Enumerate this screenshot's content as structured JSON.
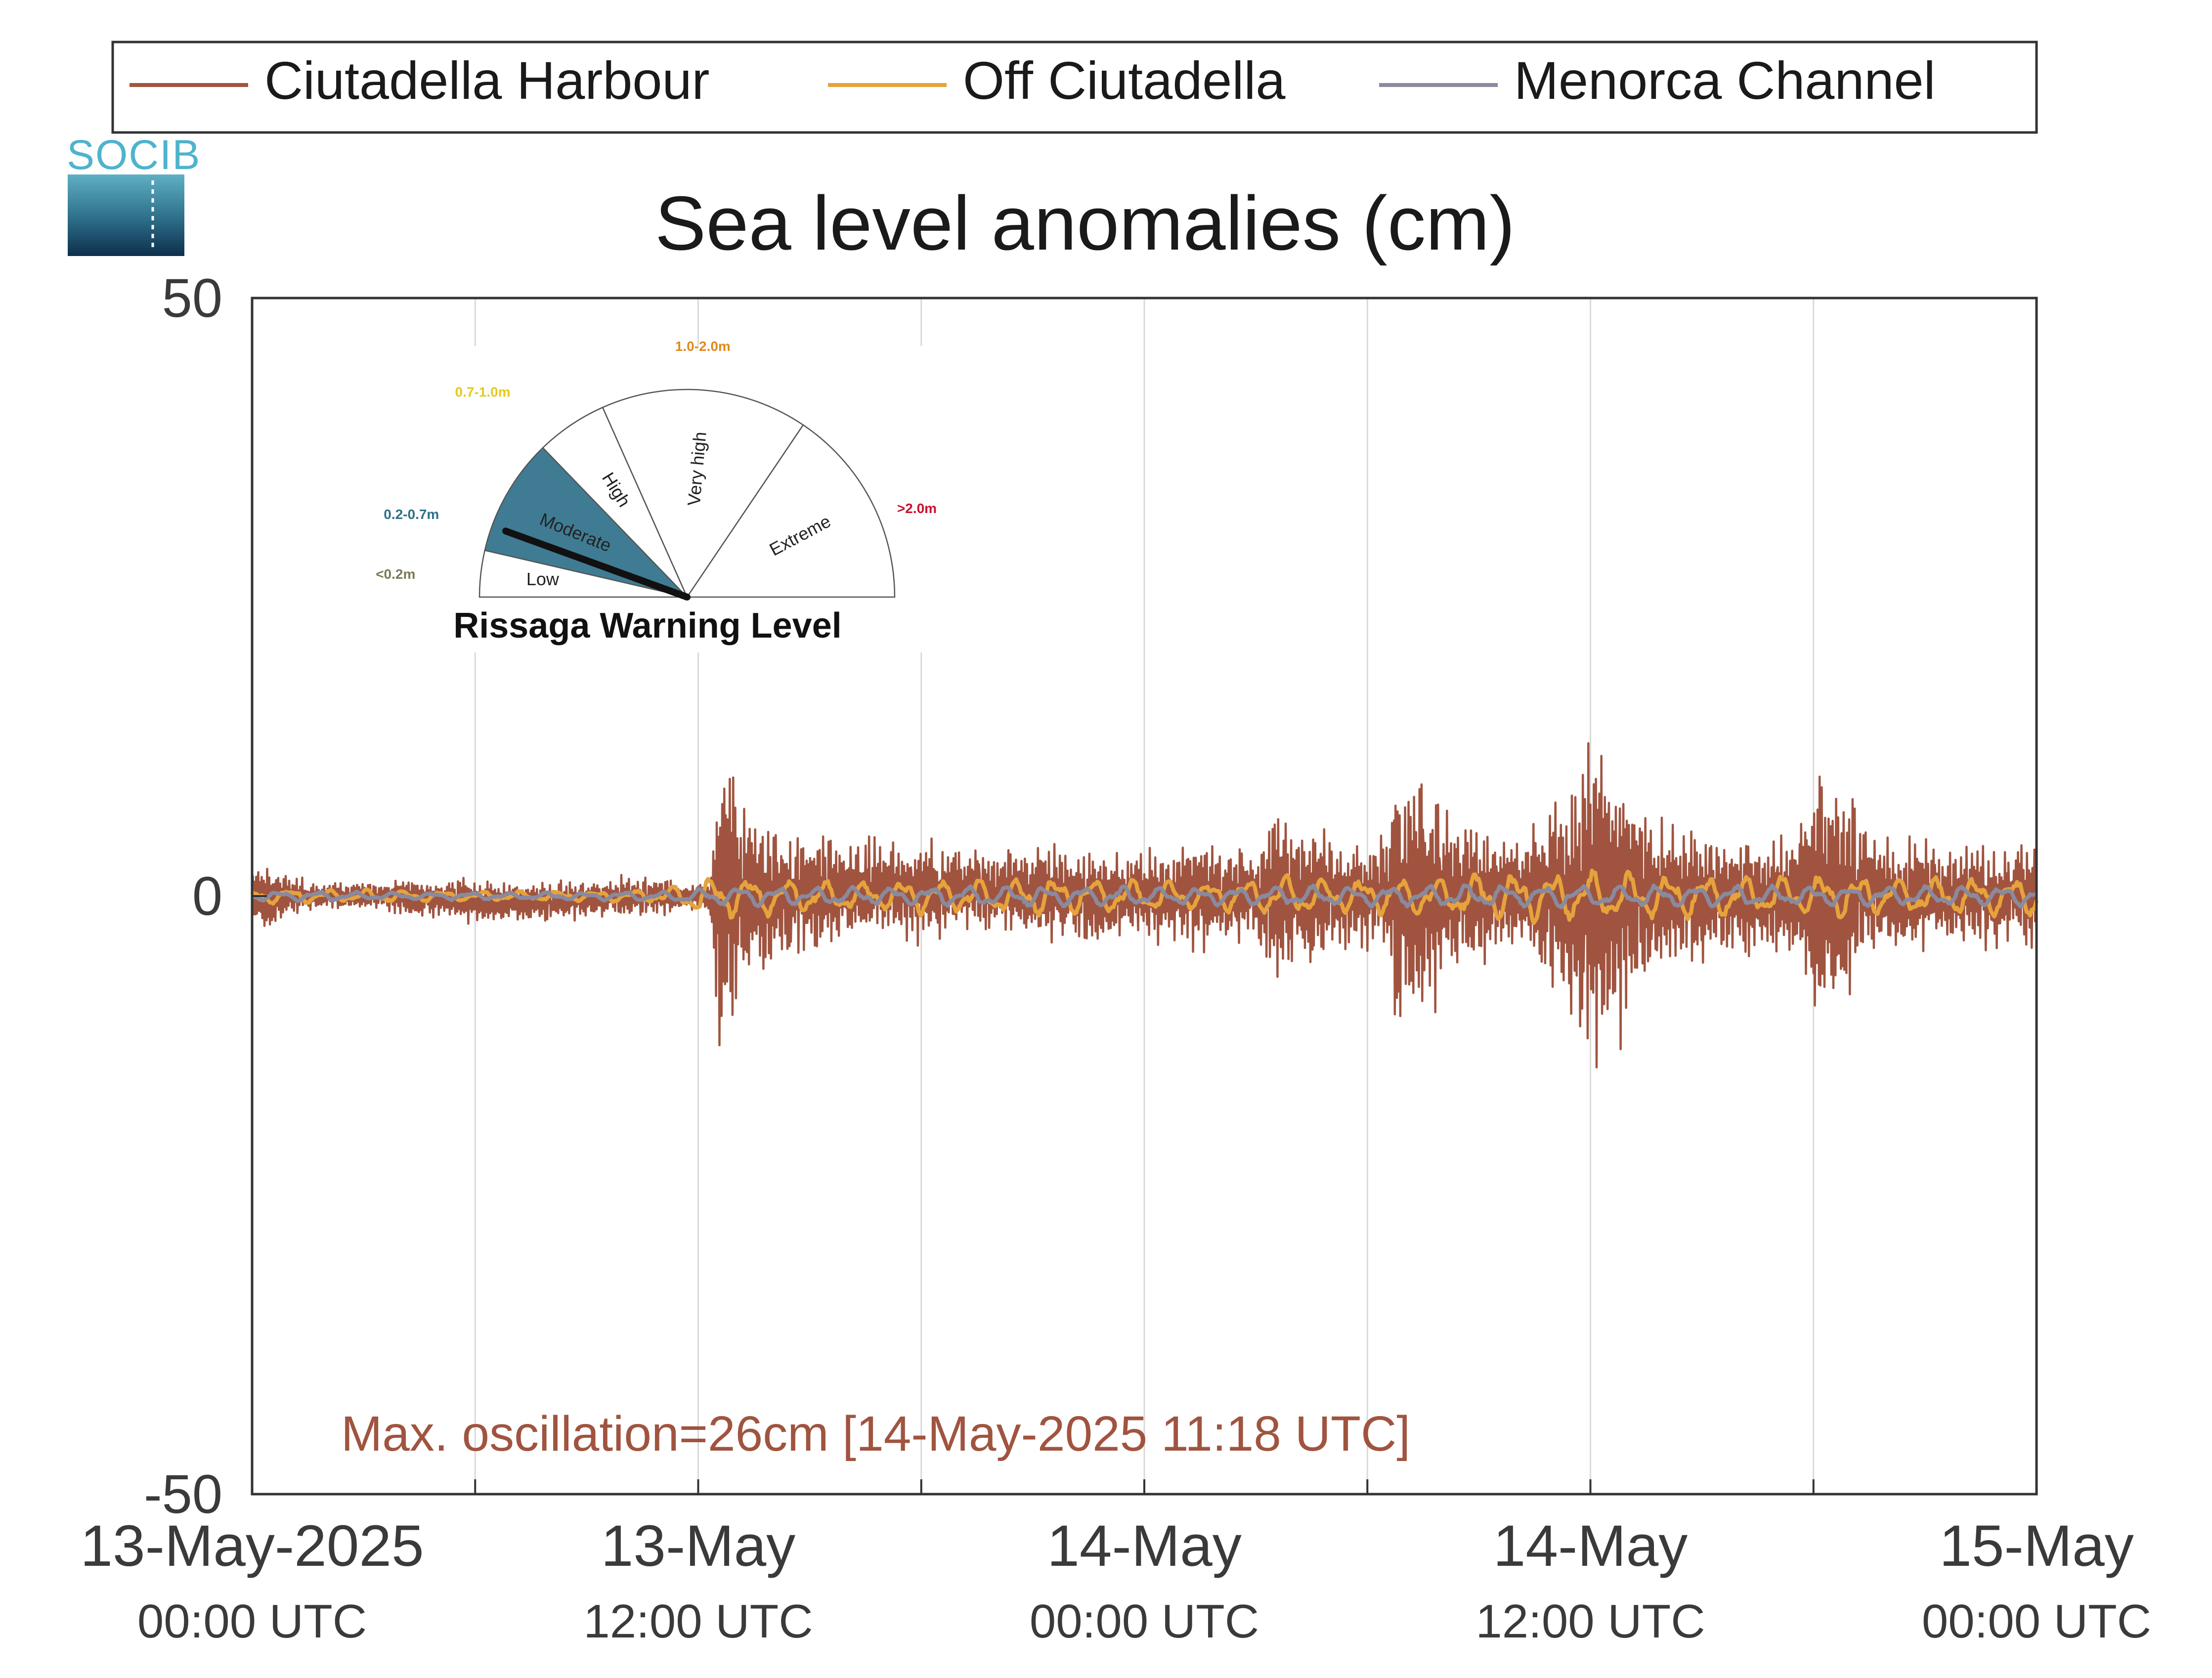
{
  "logo": {
    "text": "SOCIB"
  },
  "chart_data": {
    "type": "line",
    "title": "Sea level anomalies (cm)",
    "xlabel": "",
    "ylabel": "",
    "ylim": [
      -50,
      50
    ],
    "yticks": [
      -50,
      0,
      50
    ],
    "xlim": [
      "2025-05-13T00:00",
      "2025-05-15T00:00"
    ],
    "xticks": [
      {
        "date": "13-May-2025",
        "time": "00:00 UTC"
      },
      {
        "date": "13-May",
        "time": "12:00 UTC"
      },
      {
        "date": "14-May",
        "time": "00:00 UTC"
      },
      {
        "date": "14-May",
        "time": "12:00 UTC"
      },
      {
        "date": "15-May",
        "time": "00:00 UTC"
      }
    ],
    "grid": true,
    "legend_position": "top",
    "x_sample_minutes": 30,
    "series": [
      {
        "name": "Ciutadella Harbour",
        "color": "#a0543f",
        "amplitude_envelope_cm": [
          2,
          2.5,
          2.5,
          2,
          1.5,
          1.5,
          1,
          1,
          1,
          1,
          1,
          1,
          1,
          1,
          1.5,
          1.5,
          1.5,
          1.5,
          1.5,
          1.5,
          1.5,
          2,
          1.5,
          1.5,
          2,
          1.5,
          1.5,
          1.5,
          1.5,
          1.5,
          1.5,
          1.5,
          1.5,
          1.5,
          1.5,
          1.5,
          1.5,
          1.5,
          1.5,
          1.5,
          1.5,
          1.5,
          1,
          1,
          1,
          1.5,
          11,
          12,
          9,
          7,
          6,
          6,
          5.5,
          5,
          5,
          4.5,
          4.5,
          4.5,
          4,
          4,
          4,
          4,
          4,
          4,
          4,
          4,
          4,
          4,
          3.5,
          3.5,
          3.5,
          3.5,
          3.5,
          3.5,
          3.5,
          3.5,
          3.5,
          3.5,
          3.5,
          3.5,
          3.5,
          3.5,
          3.5,
          3.5,
          3.5,
          3.5,
          3.5,
          3.5,
          3.5,
          3.5,
          4,
          4,
          4,
          4,
          4,
          4,
          4,
          4,
          4,
          3.5,
          5,
          7,
          7,
          6,
          6,
          5.5,
          5,
          4.5,
          4.5,
          4.5,
          4,
          4,
          5,
          11,
          11,
          10,
          9,
          8,
          7,
          6,
          6,
          5,
          5,
          5,
          5,
          5,
          5.5,
          6,
          7.5,
          8.5,
          10,
          12,
          13,
          13,
          12,
          11,
          9,
          8,
          7,
          6,
          6,
          5.5,
          5.5,
          5.5,
          5,
          5,
          5,
          5,
          5,
          5,
          5,
          5,
          5.5,
          7,
          9.5,
          10,
          9,
          8,
          7,
          6,
          5.5,
          5,
          5,
          4.5,
          4.5,
          4.5,
          4,
          4,
          4,
          4,
          4,
          4,
          4,
          4,
          4,
          4
        ],
        "drift_cm": [
          0,
          0,
          0,
          -0.5,
          -0.5,
          0,
          0,
          0,
          0.5,
          0.5,
          0.5,
          0,
          0,
          0,
          0,
          0,
          0,
          0,
          0,
          0,
          0,
          0,
          0,
          0
        ]
      },
      {
        "name": "Off Ciutadella",
        "color": "#e6a23c",
        "amplitude_envelope_cm": [
          0.6,
          0.6,
          0.5,
          0.5,
          0.5,
          0.4,
          0.4,
          0.4,
          0.4,
          0.4,
          0.5,
          0.5,
          1.5,
          1.8,
          1.5,
          1.3,
          1.2,
          1.2,
          1.5,
          1.3,
          1.5,
          1.6,
          1.5,
          1.5,
          1.3,
          1.2,
          1.2,
          1.5,
          1.6,
          1.5,
          1.4,
          1.5,
          1.6,
          1.8,
          2,
          2,
          2,
          2,
          1.8,
          1.8,
          1.6,
          1.6,
          1.8,
          1.8,
          1.5,
          1.5,
          1.6,
          1.6
        ]
      },
      {
        "name": "Menorca Channel",
        "color": "#8a8a9e",
        "amplitude_envelope_cm": [
          0.4,
          0.4,
          0.4,
          0.3,
          0.3,
          0.3,
          0.3,
          0.3,
          0.3,
          0.3,
          0.4,
          0.4,
          0.6,
          0.8,
          0.8,
          0.7,
          0.7,
          0.7,
          0.8,
          0.8,
          0.8,
          0.9,
          0.8,
          0.8,
          0.8,
          0.7,
          0.7,
          0.8,
          0.8,
          0.8,
          0.8,
          0.8,
          0.9,
          0.9,
          0.9,
          0.9,
          0.9,
          0.9,
          0.9,
          0.9,
          0.9,
          0.8,
          0.8,
          0.8,
          0.8,
          0.8,
          0.8,
          0.8
        ]
      }
    ],
    "annotation": {
      "text": "Max. oscillation=26cm [14-May-2025 11:18 UTC]",
      "color": "#a0543f",
      "value_cm": 26,
      "time": "2025-05-14T11:18"
    },
    "warning_gauge": {
      "title": "Rissaga Warning Level",
      "active_level": "Moderate",
      "needle_angle_deg": 160,
      "levels": [
        {
          "name": "Low",
          "range": "<0.2m",
          "range_color": "#7a7a55",
          "fill": "#ffffff",
          "start_deg": 0,
          "end_deg": 13
        },
        {
          "name": "Moderate",
          "range": "0.2-0.7m",
          "range_color": "#2f6f88",
          "fill": "#3f7c93",
          "start_deg": 13,
          "end_deg": 46
        },
        {
          "name": "High",
          "range": "0.7-1.0m",
          "range_color": "#e6c820",
          "fill": "#ffffff",
          "start_deg": 46,
          "end_deg": 66
        },
        {
          "name": "Very high",
          "range": "1.0-2.0m",
          "range_color": "#e08a1e",
          "fill": "#ffffff",
          "start_deg": 66,
          "end_deg": 124
        },
        {
          "name": "Extreme",
          "range": ">2.0m",
          "range_color": "#c8102e",
          "fill": "#ffffff",
          "start_deg": 124,
          "end_deg": 180
        }
      ]
    }
  }
}
